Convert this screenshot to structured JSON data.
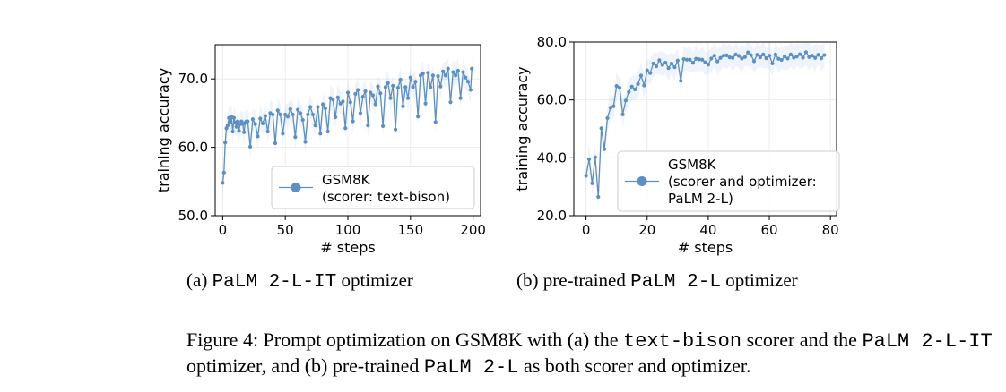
{
  "chart_data": [
    {
      "type": "line",
      "caption_label": "(a)",
      "caption_mono": "PaLM 2-L-IT",
      "caption_suffix": "optimizer",
      "xlabel": "# steps",
      "ylabel": "training accuracy",
      "xlim": [
        -6,
        206
      ],
      "ylim": [
        50.0,
        75.0
      ],
      "xticks": [
        0,
        50,
        100,
        150,
        200
      ],
      "yticks": [
        50.0,
        60.0,
        70.0
      ],
      "ytick_labels": [
        "50.0",
        "60.0",
        "70.0"
      ],
      "grid": true,
      "legend": [
        "GSM8K",
        "(scorer: text-bison)"
      ],
      "legend_position": "lower-right",
      "color": "#5b8fc5",
      "series": [
        {
          "x": [
            0,
            1,
            2,
            3,
            4,
            5,
            6,
            7,
            8,
            9,
            10,
            11,
            12,
            13,
            14,
            15,
            16,
            17,
            18,
            19,
            20,
            22,
            24,
            26,
            28,
            30,
            32,
            34,
            36,
            38,
            40,
            42,
            44,
            46,
            48,
            50,
            52,
            54,
            56,
            58,
            60,
            62,
            64,
            66,
            68,
            70,
            72,
            74,
            76,
            78,
            80,
            82,
            84,
            86,
            88,
            90,
            92,
            94,
            96,
            98,
            100,
            102,
            104,
            106,
            108,
            110,
            112,
            114,
            116,
            118,
            120,
            122,
            124,
            126,
            128,
            130,
            132,
            134,
            136,
            138,
            140,
            142,
            144,
            146,
            148,
            150,
            152,
            154,
            156,
            158,
            160,
            162,
            164,
            166,
            168,
            170,
            172,
            174,
            176,
            178,
            180,
            182,
            184,
            186,
            188,
            190,
            192,
            194,
            196,
            198,
            199
          ],
          "y": [
            54.8,
            56.3,
            60.7,
            62.8,
            63.2,
            64.3,
            63.7,
            64.5,
            62.3,
            64.3,
            63.6,
            63.0,
            63.8,
            62.4,
            63.4,
            63.8,
            63.4,
            62.2,
            63.6,
            63.8,
            63.8,
            60.1,
            64.1,
            63.4,
            61.6,
            64.2,
            63.5,
            64.6,
            62.3,
            65.0,
            64.8,
            60.6,
            65.4,
            64.8,
            62.0,
            64.8,
            64.5,
            65.6,
            64.8,
            61.5,
            65.5,
            65.0,
            64.0,
            60.8,
            64.8,
            65.9,
            64.8,
            63.2,
            65.9,
            62.0,
            66.3,
            65.7,
            62.3,
            67.2,
            67.0,
            64.4,
            67.3,
            66.4,
            66.7,
            62.8,
            68.0,
            66.6,
            63.8,
            67.8,
            68.4,
            65.0,
            67.4,
            68.2,
            63.2,
            68.0,
            67.6,
            66.3,
            68.9,
            67.9,
            63.1,
            68.8,
            69.4,
            67.2,
            69.0,
            62.6,
            68.7,
            69.9,
            66.0,
            68.8,
            67.2,
            70.2,
            68.8,
            69.6,
            64.5,
            70.5,
            70.8,
            66.4,
            70.9,
            68.8,
            70.5,
            63.7,
            70.4,
            68.9,
            71.1,
            70.5,
            71.5,
            66.6,
            71.0,
            70.5,
            71.2,
            67.2,
            71.0,
            70.2,
            69.6,
            68.4,
            71.5
          ]
        }
      ]
    },
    {
      "type": "line",
      "caption_label": "(b) pre-trained",
      "caption_mono": "PaLM 2-L",
      "caption_suffix": "optimizer",
      "xlabel": "# steps",
      "ylabel": "training accuracy",
      "xlim": [
        -4,
        82
      ],
      "ylim": [
        20.0,
        80.0
      ],
      "xticks": [
        0,
        20,
        40,
        60,
        80
      ],
      "yticks": [
        20.0,
        40.0,
        60.0,
        80.0
      ],
      "ytick_labels": [
        "20.0",
        "40.0",
        "60.0",
        "80.0"
      ],
      "grid": true,
      "legend": [
        "GSM8K",
        "(scorer and optimizer:",
        "PaLM 2-L)"
      ],
      "legend_position": "lower-right",
      "color": "#5b8fc5",
      "series": [
        {
          "x": [
            0,
            1,
            2,
            3,
            4,
            5,
            6,
            7,
            8,
            9,
            10,
            11,
            12,
            13,
            14,
            15,
            16,
            17,
            18,
            19,
            20,
            21,
            22,
            23,
            24,
            25,
            26,
            27,
            28,
            29,
            30,
            31,
            32,
            33,
            34,
            35,
            36,
            37,
            38,
            39,
            40,
            41,
            42,
            43,
            44,
            45,
            46,
            47,
            48,
            49,
            50,
            51,
            52,
            53,
            54,
            55,
            56,
            57,
            58,
            59,
            60,
            61,
            62,
            63,
            64,
            65,
            66,
            67,
            68,
            69,
            70,
            71,
            72,
            73,
            74,
            75,
            76,
            77,
            78
          ],
          "y": [
            33.8,
            39.5,
            31.2,
            40.2,
            26.5,
            50.2,
            43.0,
            53.7,
            57.3,
            57.8,
            64.8,
            64.2,
            55.0,
            59.8,
            62.7,
            64.6,
            63.6,
            65.5,
            68.4,
            65.0,
            70.2,
            69.3,
            72.6,
            71.6,
            73.7,
            72.1,
            72.9,
            71.0,
            72.6,
            71.3,
            73.6,
            66.6,
            74.1,
            73.9,
            73.9,
            72.8,
            74.2,
            74.0,
            73.9,
            73.0,
            72.2,
            74.3,
            75.3,
            73.3,
            74.5,
            75.3,
            75.4,
            74.7,
            74.5,
            75.7,
            75.2,
            74.3,
            74.8,
            76.4,
            75.5,
            73.4,
            75.6,
            74.7,
            75.7,
            74.4,
            75.3,
            72.6,
            75.7,
            74.2,
            73.8,
            75.0,
            74.3,
            75.7,
            74.6,
            75.0,
            75.8,
            74.6,
            76.5,
            74.8,
            75.3,
            74.5,
            75.6,
            74.4,
            75.5
          ]
        }
      ]
    }
  ],
  "figure_caption": {
    "p1": "Figure 4: Prompt optimization on GSM8K with (a) the ",
    "m1": "text-bison",
    "p2": " scorer and the ",
    "m2": "PaLM 2-L-IT",
    "p3": "optimizer, and (b) pre-trained ",
    "m3": "PaLM 2-L",
    "p4": " as both scorer and optimizer."
  }
}
